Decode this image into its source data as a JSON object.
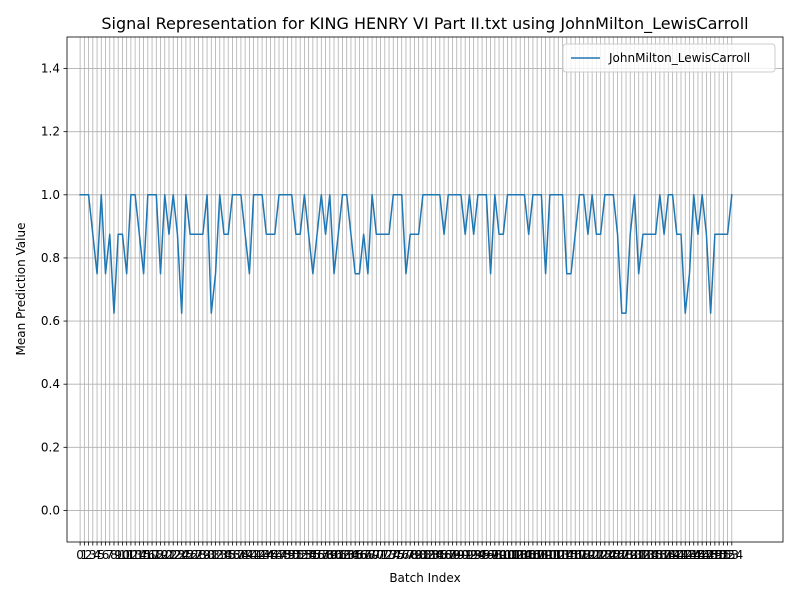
{
  "chart_data": {
    "type": "line",
    "title": "Signal Representation for KING HENRY VI Part II.txt using JohnMilton_LewisCarroll",
    "xlabel": "Batch Index",
    "ylabel": "Mean Prediction Value",
    "ylim": [
      -0.1,
      1.5
    ],
    "y_ticks": [
      "0.0",
      "0.2",
      "0.4",
      "0.6",
      "0.8",
      "1.0",
      "1.2",
      "1.4"
    ],
    "xlim": [
      -3.1,
      166.1
    ],
    "grid": true,
    "legend_position": "top-right",
    "series": [
      {
        "name": "JohnMilton_LewisCarroll",
        "color": "#1f77b4",
        "x_start": 0,
        "values": [
          1.0,
          1.0,
          1.0,
          0.875,
          0.75,
          1.0,
          0.75,
          0.875,
          0.625,
          0.875,
          0.875,
          0.75,
          1.0,
          1.0,
          0.875,
          0.75,
          1.0,
          1.0,
          1.0,
          0.75,
          1.0,
          0.875,
          1.0,
          0.875,
          0.625,
          1.0,
          0.875,
          0.875,
          0.875,
          0.875,
          1.0,
          0.625,
          0.75,
          1.0,
          0.875,
          0.875,
          1.0,
          1.0,
          1.0,
          0.875,
          0.75,
          1.0,
          1.0,
          1.0,
          0.875,
          0.875,
          0.875,
          1.0,
          1.0,
          1.0,
          1.0,
          0.875,
          0.875,
          1.0,
          0.875,
          0.75,
          0.875,
          1.0,
          0.875,
          1.0,
          0.75,
          0.875,
          1.0,
          1.0,
          0.875,
          0.75,
          0.75,
          0.875,
          0.75,
          1.0,
          0.875,
          0.875,
          0.875,
          0.875,
          1.0,
          1.0,
          1.0,
          0.75,
          0.875,
          0.875,
          0.875,
          1.0,
          1.0,
          1.0,
          1.0,
          1.0,
          0.875,
          1.0,
          1.0,
          1.0,
          1.0,
          0.875,
          1.0,
          0.875,
          1.0,
          1.0,
          1.0,
          0.75,
          1.0,
          0.875,
          0.875,
          1.0,
          1.0,
          1.0,
          1.0,
          1.0,
          0.875,
          1.0,
          1.0,
          1.0,
          0.75,
          1.0,
          1.0,
          1.0,
          1.0,
          0.75,
          0.75,
          0.875,
          1.0,
          1.0,
          0.875,
          1.0,
          0.875,
          0.875,
          1.0,
          1.0,
          1.0,
          0.875,
          0.625,
          0.625,
          0.875,
          1.0,
          0.75,
          0.875,
          0.875,
          0.875,
          0.875,
          1.0,
          0.875,
          1.0,
          1.0,
          0.875,
          0.875,
          0.625,
          0.75,
          1.0,
          0.875,
          1.0,
          0.875,
          0.625,
          0.875,
          0.875,
          0.875,
          0.875,
          1.0
        ]
      }
    ]
  }
}
